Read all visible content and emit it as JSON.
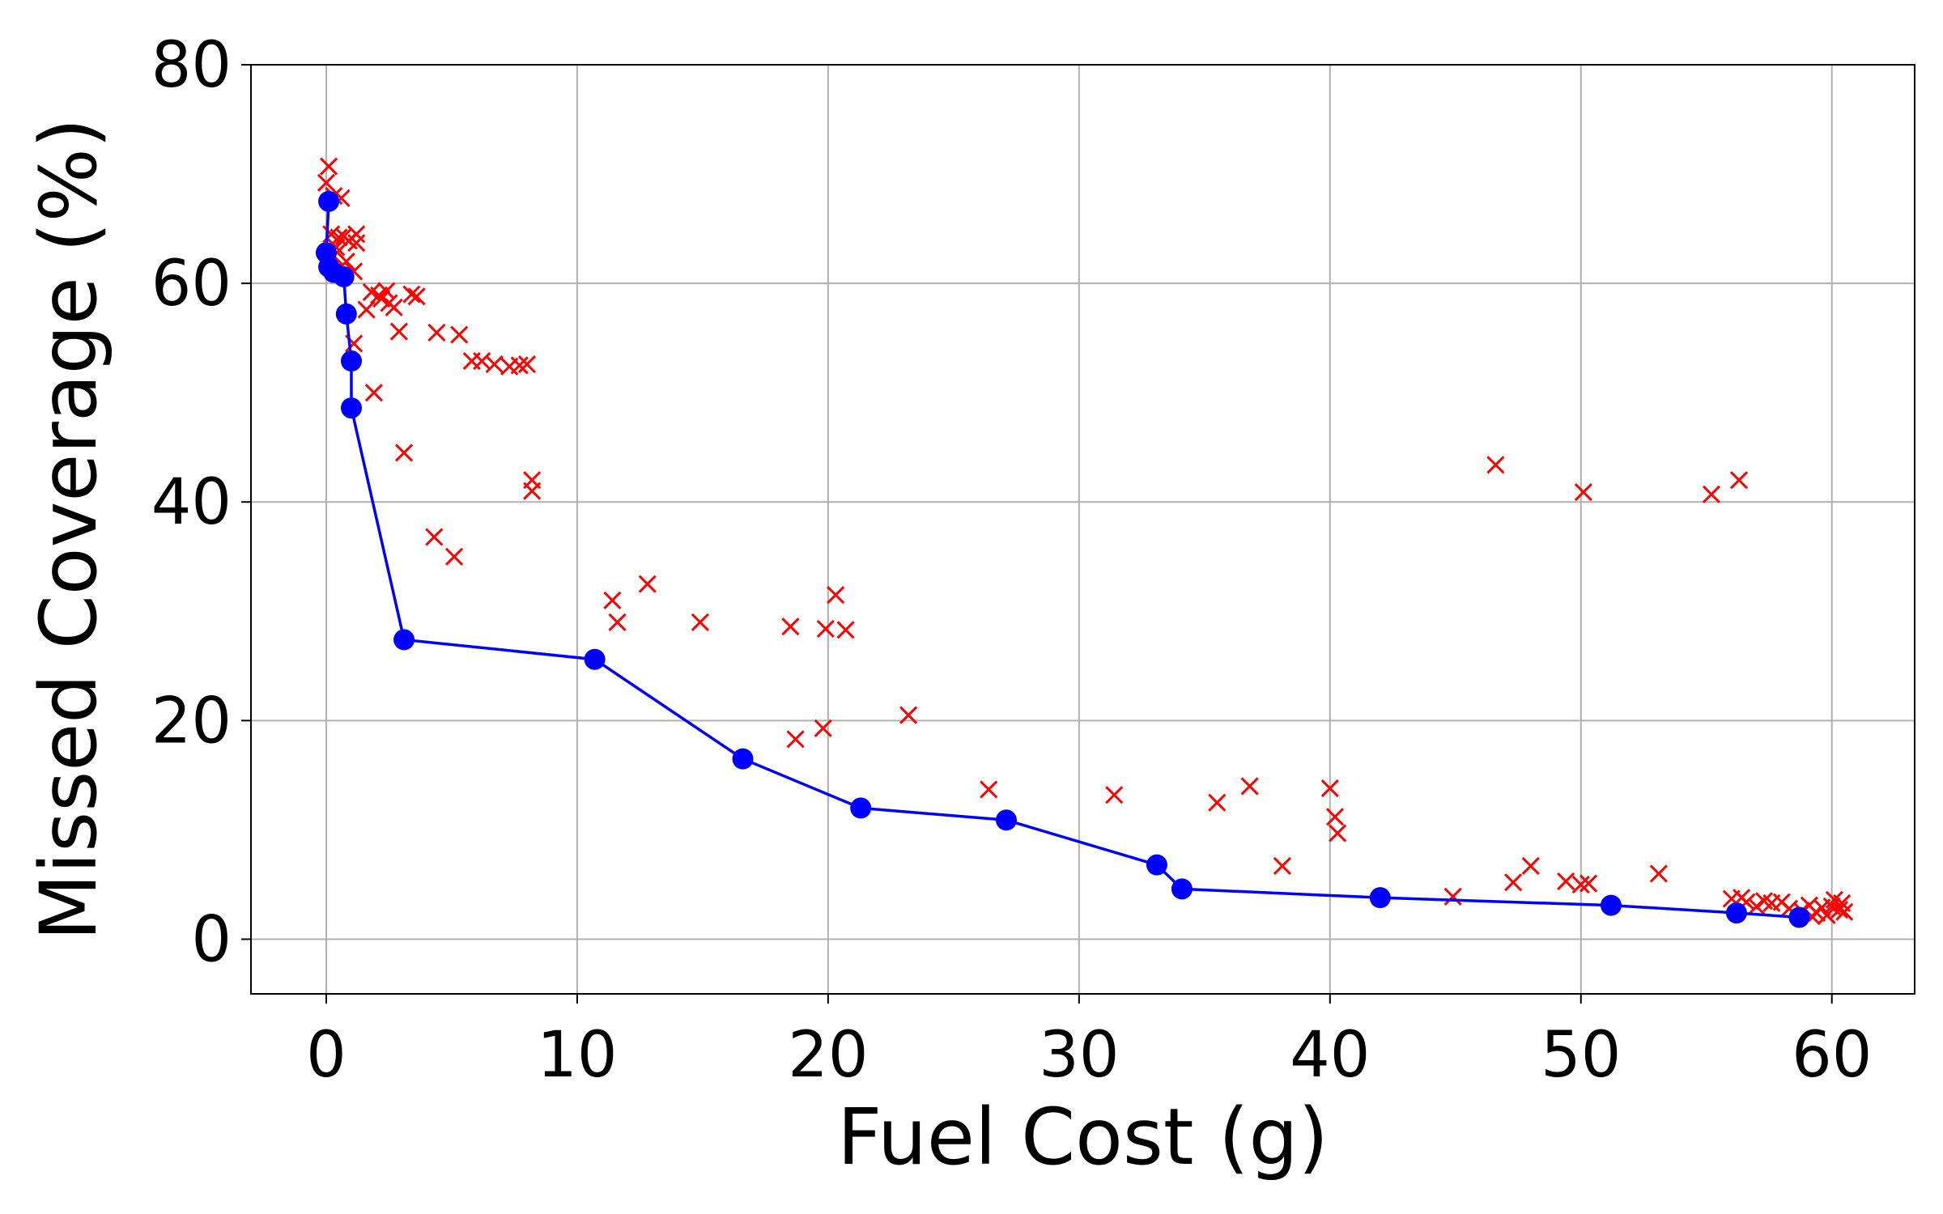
{
  "chart_data": {
    "type": "scatter",
    "xlabel": "Fuel Cost (g)",
    "ylabel": "Missed Coverage (%)",
    "xlim": [
      -3,
      63.3
    ],
    "ylim": [
      -5,
      80
    ],
    "xticks": [
      0,
      10,
      20,
      30,
      40,
      50,
      60
    ],
    "yticks": [
      0,
      20,
      40,
      60,
      80
    ],
    "grid": true,
    "colors": {
      "pareto": "#0000ff",
      "candidates": "#ff0000",
      "grid": "#b0b0b0"
    },
    "series": [
      {
        "kind": "scatter-x",
        "points": [
          [
            0.1,
            70.7
          ],
          [
            0.0,
            69.2
          ],
          [
            0.3,
            68.0
          ],
          [
            0.6,
            67.8
          ],
          [
            0.2,
            64.5
          ],
          [
            0.5,
            64.2
          ],
          [
            0.7,
            64.3
          ],
          [
            0.9,
            63.9
          ],
          [
            1.2,
            64.5
          ],
          [
            1.2,
            63.7
          ],
          [
            0.4,
            63.3
          ],
          [
            0.3,
            62.5
          ],
          [
            0.8,
            62.0
          ],
          [
            1.1,
            61.1
          ],
          [
            1.8,
            59.2
          ],
          [
            2.1,
            58.9
          ],
          [
            2.4,
            59.3
          ],
          [
            2.2,
            58.6
          ],
          [
            2.5,
            58.2
          ],
          [
            2.7,
            57.8
          ],
          [
            3.4,
            59.0
          ],
          [
            3.6,
            58.8
          ],
          [
            1.6,
            57.6
          ],
          [
            1.1,
            54.5
          ],
          [
            2.9,
            55.6
          ],
          [
            4.4,
            55.5
          ],
          [
            5.3,
            55.3
          ],
          [
            5.8,
            52.9
          ],
          [
            6.2,
            52.9
          ],
          [
            6.7,
            52.6
          ],
          [
            7.3,
            52.4
          ],
          [
            7.7,
            52.5
          ],
          [
            8.0,
            52.6
          ],
          [
            1.9,
            50.0
          ],
          [
            3.1,
            44.5
          ],
          [
            8.2,
            42.0
          ],
          [
            8.2,
            41.0
          ],
          [
            4.3,
            36.8
          ],
          [
            5.1,
            35.0
          ],
          [
            11.4,
            31.0
          ],
          [
            11.6,
            29.0
          ],
          [
            12.8,
            32.5
          ],
          [
            14.9,
            29.0
          ],
          [
            18.5,
            28.6
          ],
          [
            19.9,
            28.4
          ],
          [
            20.3,
            31.5
          ],
          [
            20.7,
            28.3
          ],
          [
            18.7,
            18.3
          ],
          [
            19.8,
            19.3
          ],
          [
            23.2,
            20.5
          ],
          [
            26.4,
            13.7
          ],
          [
            31.4,
            13.2
          ],
          [
            35.5,
            12.5
          ],
          [
            36.8,
            14.0
          ],
          [
            40.0,
            13.8
          ],
          [
            40.2,
            11.2
          ],
          [
            40.3,
            9.7
          ],
          [
            38.1,
            6.7
          ],
          [
            46.6,
            43.4
          ],
          [
            50.1,
            40.9
          ],
          [
            55.2,
            40.7
          ],
          [
            56.3,
            42.0
          ],
          [
            44.9,
            3.9
          ],
          [
            47.3,
            5.2
          ],
          [
            48.0,
            6.7
          ],
          [
            49.4,
            5.3
          ],
          [
            50.0,
            5.0
          ],
          [
            50.3,
            5.1
          ],
          [
            53.1,
            6.0
          ],
          [
            56.0,
            3.7
          ],
          [
            56.4,
            3.8
          ],
          [
            56.6,
            3.4
          ],
          [
            57.0,
            3.0
          ],
          [
            57.3,
            3.5
          ],
          [
            57.6,
            3.3
          ],
          [
            58.0,
            3.4
          ],
          [
            58.3,
            2.8
          ],
          [
            58.8,
            2.6
          ],
          [
            59.1,
            3.1
          ],
          [
            59.4,
            2.4
          ],
          [
            59.6,
            2.9
          ],
          [
            59.8,
            2.2
          ],
          [
            60.0,
            3.0
          ],
          [
            60.1,
            3.6
          ],
          [
            60.3,
            2.7
          ],
          [
            60.4,
            3.3
          ],
          [
            60.5,
            2.5
          ],
          [
            59.2,
            2.1
          ]
        ]
      },
      {
        "kind": "line-marker",
        "points": [
          [
            0.1,
            67.5
          ],
          [
            0.0,
            62.8
          ],
          [
            0.1,
            61.5
          ],
          [
            0.3,
            61.0
          ],
          [
            0.7,
            60.6
          ],
          [
            0.8,
            57.2
          ],
          [
            1.0,
            52.9
          ],
          [
            1.0,
            48.6
          ],
          [
            3.1,
            27.4
          ],
          [
            10.7,
            25.6
          ],
          [
            16.6,
            16.5
          ],
          [
            21.3,
            12.0
          ],
          [
            27.1,
            10.9
          ],
          [
            33.1,
            6.8
          ],
          [
            34.1,
            4.6
          ],
          [
            42.0,
            3.8
          ],
          [
            51.2,
            3.1
          ],
          [
            56.2,
            2.4
          ],
          [
            58.7,
            2.0
          ]
        ]
      }
    ]
  }
}
